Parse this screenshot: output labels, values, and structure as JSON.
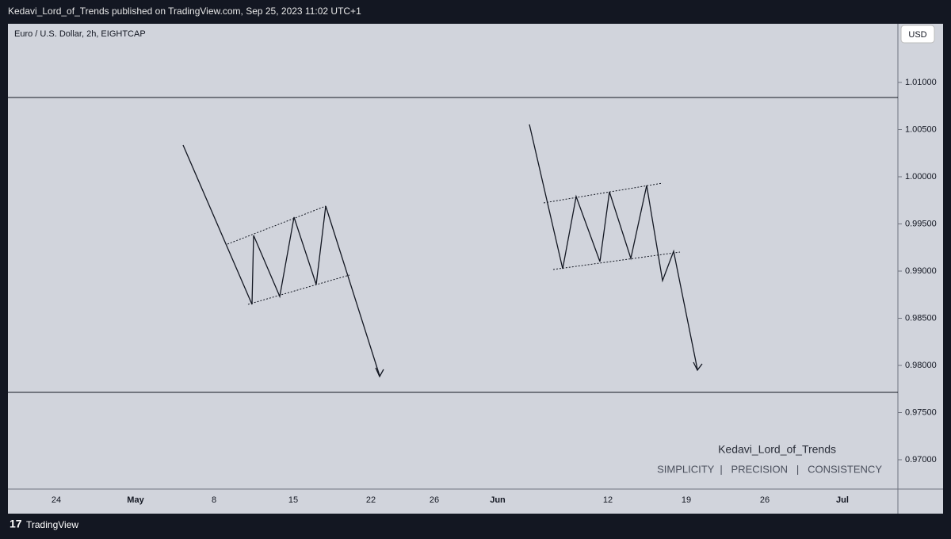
{
  "header": {
    "text": "Kedavi_Lord_of_Trends published on TradingView.com, Sep 25, 2023 11:02 UTC+1"
  },
  "chart_data": {
    "type": "line",
    "title": "Euro / U.S. Dollar, 2h, EIGHTCAP",
    "currency": "USD",
    "categories": [
      "24",
      "May",
      "8",
      "15",
      "22",
      "26",
      "Jun",
      "12",
      "19",
      "26",
      "Jul"
    ],
    "ylim": [
      0.96689,
      1.01605
    ],
    "yticks": [
      {
        "value": 0.97,
        "label": "0.97000"
      },
      {
        "value": 0.975,
        "label": "0.97500"
      },
      {
        "value": 0.98,
        "label": "0.98000"
      },
      {
        "value": 0.985,
        "label": "0.98500"
      },
      {
        "value": 0.99,
        "label": "0.99000"
      },
      {
        "value": 0.995,
        "label": "0.99500"
      },
      {
        "value": 1.0,
        "label": "1.00000"
      },
      {
        "value": 1.005,
        "label": "1.00500"
      },
      {
        "value": 1.01,
        "label": "1.01000"
      }
    ],
    "grid": false
  },
  "watermark": {
    "author": "Kedavi_Lord_of_Trends",
    "tagline": "SIMPLICITY  |   PRECISION   |   CONSISTENCY"
  },
  "footer": {
    "brand": "TradingView"
  }
}
